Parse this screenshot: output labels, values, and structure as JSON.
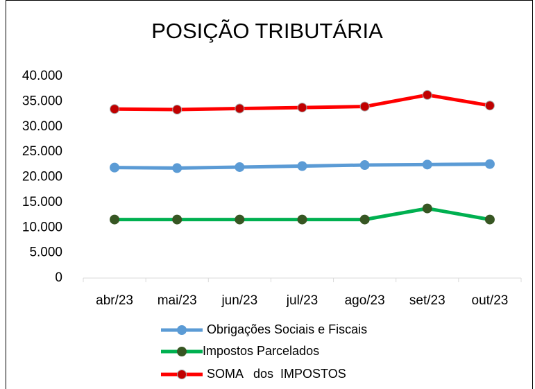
{
  "chart_data": {
    "type": "line",
    "title": "POSIÇÃO TRIBUTÁRIA",
    "categories": [
      "abr/23",
      "mai/23",
      "jun/23",
      "jul/23",
      "ago/23",
      "set/23",
      "out/23"
    ],
    "series": [
      {
        "name": "Obrigações Sociais e Fiscais",
        "color": "#5b9bd5",
        "marker_color": "#5b9bd5",
        "values": [
          21900,
          21800,
          22000,
          22200,
          22400,
          22500,
          22600
        ]
      },
      {
        "name": "Impostos Parcelados",
        "color": "#00b050",
        "marker_color": "#375623",
        "values": [
          11600,
          11600,
          11600,
          11600,
          11600,
          13800,
          11600
        ]
      },
      {
        "name": "SOMA   dos  IMPOSTOS",
        "color": "#ff0000",
        "marker_color": "#c00000",
        "values": [
          33500,
          33400,
          33600,
          33800,
          34000,
          36300,
          34200
        ]
      }
    ],
    "ylim": [
      0,
      40000
    ],
    "yticks": [
      0,
      {
        "value": 5000,
        "label": "5.000"
      },
      {
        "value": 10000,
        "label": "10.000"
      },
      {
        "value": 15000,
        "label": "15.000"
      },
      {
        "value": 20000,
        "label": "20.000"
      },
      {
        "value": 25000,
        "label": "25.000"
      },
      {
        "value": 30000,
        "label": "30.000"
      },
      {
        "value": 35000,
        "label": "35.000"
      },
      {
        "value": 40000,
        "label": "40.000"
      }
    ],
    "grid": false
  }
}
